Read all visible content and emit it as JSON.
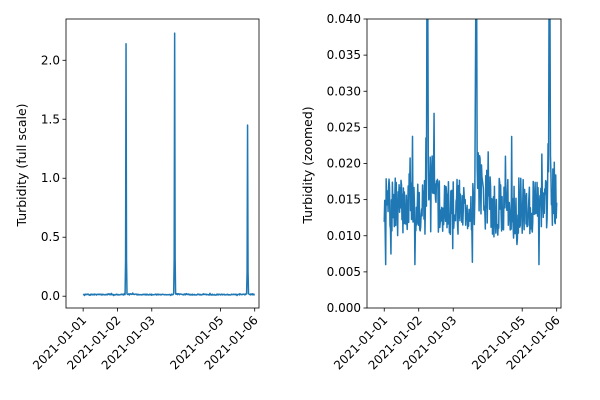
{
  "chart_data": [
    {
      "type": "line",
      "title": "",
      "xlabel": "",
      "ylabel": "Turbidity (full scale)",
      "x_range": [
        "2020-12-31T12:00",
        "2021-01-06T03:00"
      ],
      "ylim": [
        -0.1,
        2.35
      ],
      "y_ticks": [
        0.0,
        0.5,
        1.0,
        1.5,
        2.0
      ],
      "y_tick_labels": [
        "0.0",
        "0.5",
        "1.0",
        "1.5",
        "2.0"
      ],
      "x_ticks": [
        "2021-01-01",
        "2021-01-02",
        "2021-01-03",
        "2021-01-05",
        "2021-01-06"
      ],
      "grid": false,
      "color": "#1f77b4",
      "baseline_range": [
        0.006,
        0.027
      ],
      "spikes": [
        {
          "x": "2021-01-02T06:00",
          "y": 2.14
        },
        {
          "x": "2021-01-03T16:00",
          "y": 2.23
        },
        {
          "x": "2021-01-05T19:00",
          "y": 1.45
        }
      ]
    },
    {
      "type": "line",
      "title": "",
      "xlabel": "",
      "ylabel": "Turbidity (zoomed)",
      "x_range": [
        "2020-12-31T12:00",
        "2021-01-06T03:00"
      ],
      "ylim": [
        0.0,
        0.04
      ],
      "y_ticks": [
        0.0,
        0.005,
        0.01,
        0.015,
        0.02,
        0.025,
        0.03,
        0.035,
        0.04
      ],
      "y_tick_labels": [
        "0.000",
        "0.005",
        "0.010",
        "0.015",
        "0.020",
        "0.025",
        "0.030",
        "0.035",
        "0.040"
      ],
      "x_ticks": [
        "2021-01-01",
        "2021-01-02",
        "2021-01-03",
        "2021-01-05",
        "2021-01-06"
      ],
      "grid": false,
      "color": "#1f77b4",
      "baseline_range": [
        0.006,
        0.027
      ],
      "spikes": [
        {
          "x": "2021-01-02T06:00",
          "y": 2.14
        },
        {
          "x": "2021-01-03T16:00",
          "y": 2.23
        },
        {
          "x": "2021-01-05T19:00",
          "y": 1.45
        }
      ]
    }
  ]
}
